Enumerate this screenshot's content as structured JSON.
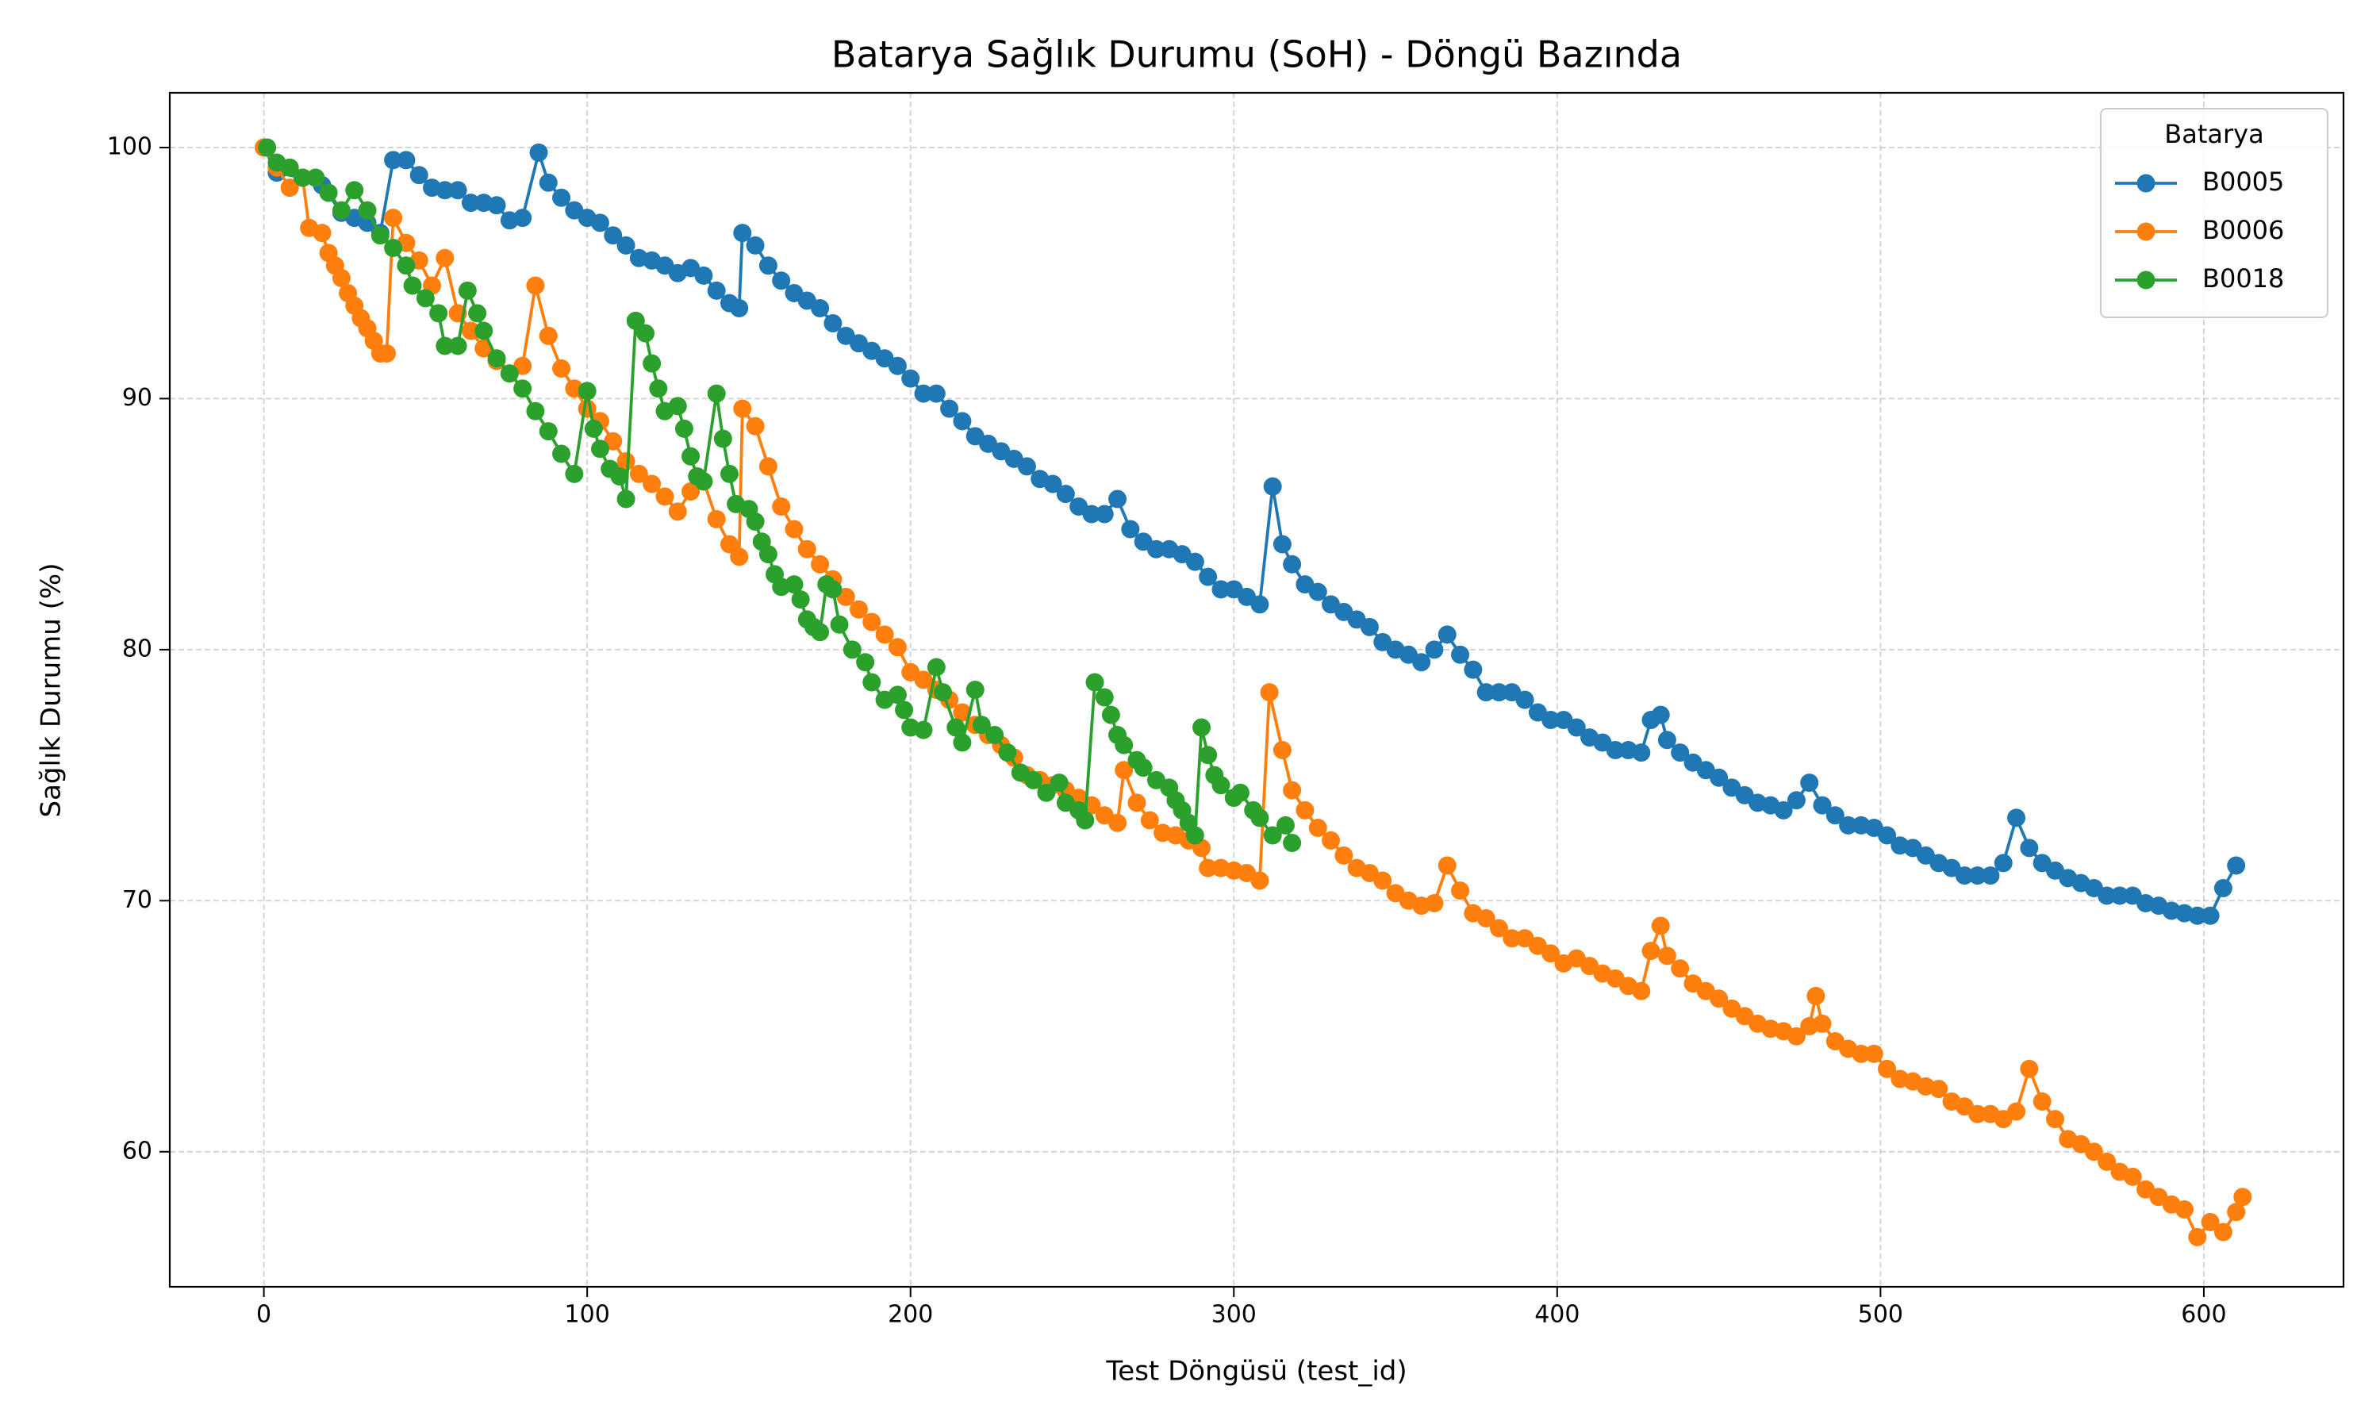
{
  "chart_data": {
    "type": "line",
    "title": "Batarya Sağlık Durumu (SoH) - Döngü Bazında",
    "x_label": "Test Döngüsü (test_id)",
    "y_label": "Sağlık Durumu (%)",
    "legend_title": "Batarya",
    "legend_loc": "upper right",
    "grid": true,
    "xlim": [
      -29.1,
      643.2
    ],
    "ylim": [
      54.62,
      102.18
    ],
    "xticks": [
      0,
      100,
      200,
      300,
      400,
      500,
      600
    ],
    "yticks": [
      60,
      70,
      80,
      90,
      100
    ],
    "series": [
      {
        "name": "B0005",
        "color": "#1f77b4",
        "x": [
          0,
          4,
          12,
          18,
          24,
          28,
          32,
          36,
          40,
          44,
          48,
          52,
          56,
          60,
          64,
          68,
          72,
          76,
          80,
          85,
          88,
          92,
          96,
          100,
          104,
          108,
          112,
          116,
          120,
          124,
          128,
          132,
          136,
          140,
          144,
          147,
          148,
          152,
          156,
          160,
          164,
          168,
          172,
          176,
          180,
          184,
          188,
          192,
          196,
          200,
          204,
          208,
          212,
          216,
          220,
          224,
          228,
          232,
          236,
          240,
          244,
          248,
          252,
          256,
          260,
          264,
          268,
          272,
          276,
          280,
          284,
          288,
          292,
          296,
          300,
          304,
          308,
          312,
          315,
          318,
          322,
          326,
          330,
          334,
          338,
          342,
          346,
          350,
          354,
          358,
          362,
          366,
          370,
          374,
          378,
          382,
          386,
          390,
          394,
          398,
          402,
          406,
          410,
          414,
          418,
          422,
          426,
          429,
          432,
          434,
          438,
          442,
          446,
          450,
          454,
          458,
          462,
          466,
          470,
          474,
          478,
          482,
          486,
          490,
          494,
          498,
          502,
          506,
          510,
          514,
          518,
          522,
          526,
          530,
          534,
          538,
          542,
          546,
          550,
          554,
          558,
          562,
          566,
          570,
          574,
          578,
          582,
          586,
          590,
          594,
          598,
          602,
          606,
          610
        ],
        "values": [
          100,
          99,
          98.8,
          98.5,
          97.4,
          97.2,
          97.0,
          96.6,
          99.5,
          99.5,
          98.9,
          98.4,
          98.3,
          98.3,
          97.8,
          97.8,
          97.7,
          97.1,
          97.2,
          99.8,
          98.6,
          98.0,
          97.5,
          97.2,
          97.0,
          96.5,
          96.1,
          95.6,
          95.5,
          95.3,
          95.0,
          95.2,
          94.9,
          94.3,
          93.8,
          93.6,
          96.6,
          96.1,
          95.3,
          94.7,
          94.2,
          93.9,
          93.6,
          93.0,
          92.5,
          92.2,
          91.9,
          91.6,
          91.3,
          90.8,
          90.2,
          90.2,
          89.6,
          89.1,
          88.5,
          88.2,
          87.9,
          87.6,
          87.3,
          86.8,
          86.6,
          86.2,
          85.7,
          85.4,
          85.4,
          86.0,
          84.8,
          84.3,
          84.0,
          84.0,
          83.8,
          83.5,
          82.9,
          82.4,
          82.4,
          82.1,
          81.8,
          86.5,
          84.2,
          83.4,
          82.6,
          82.3,
          81.8,
          81.5,
          81.2,
          80.9,
          80.3,
          80.0,
          79.8,
          79.5,
          80.0,
          80.6,
          79.8,
          79.2,
          78.3,
          78.3,
          78.3,
          78.0,
          77.5,
          77.2,
          77.2,
          76.9,
          76.5,
          76.3,
          76.0,
          76.0,
          75.9,
          77.2,
          77.4,
          76.4,
          75.9,
          75.5,
          75.2,
          74.9,
          74.5,
          74.2,
          73.9,
          73.8,
          73.6,
          74.0,
          74.7,
          73.8,
          73.4,
          73.0,
          73.0,
          72.9,
          72.6,
          72.2,
          72.1,
          71.8,
          71.5,
          71.3,
          71.0,
          71.0,
          71.0,
          71.5,
          73.3,
          72.1,
          71.5,
          71.2,
          70.9,
          70.7,
          70.5,
          70.2,
          70.2,
          70.2,
          69.9,
          69.8,
          69.6,
          69.5,
          69.4,
          69.4,
          70.5,
          71.4
        ]
      },
      {
        "name": "B0006",
        "color": "#ff7f0e",
        "x": [
          0,
          4,
          8,
          12,
          14,
          18,
          20,
          22,
          24,
          26,
          28,
          30,
          32,
          34,
          36,
          38,
          40,
          44,
          48,
          52,
          56,
          60,
          64,
          68,
          72,
          76,
          80,
          84,
          88,
          92,
          96,
          100,
          104,
          108,
          112,
          116,
          120,
          124,
          128,
          132,
          136,
          140,
          144,
          147,
          148,
          152,
          156,
          160,
          164,
          168,
          172,
          176,
          180,
          184,
          188,
          192,
          196,
          200,
          204,
          208,
          212,
          216,
          220,
          224,
          228,
          232,
          236,
          240,
          244,
          248,
          252,
          256,
          260,
          264,
          266,
          270,
          274,
          278,
          282,
          286,
          290,
          292,
          296,
          300,
          304,
          308,
          311,
          315,
          318,
          322,
          326,
          330,
          334,
          338,
          342,
          346,
          350,
          354,
          358,
          362,
          366,
          370,
          374,
          378,
          382,
          386,
          390,
          394,
          398,
          402,
          406,
          410,
          414,
          418,
          422,
          426,
          429,
          432,
          434,
          438,
          442,
          446,
          450,
          454,
          458,
          462,
          466,
          470,
          474,
          478,
          480,
          482,
          486,
          490,
          494,
          498,
          502,
          506,
          510,
          514,
          518,
          522,
          526,
          530,
          534,
          538,
          542,
          546,
          550,
          554,
          558,
          562,
          566,
          570,
          574,
          578,
          582,
          586,
          590,
          594,
          598,
          602,
          606,
          610,
          612
        ],
        "values": [
          100,
          99.2,
          98.4,
          98.8,
          96.8,
          96.6,
          95.8,
          95.3,
          94.8,
          94.2,
          93.7,
          93.2,
          92.8,
          92.3,
          91.8,
          91.8,
          97.2,
          96.2,
          95.5,
          94.5,
          95.6,
          93.4,
          92.7,
          92.0,
          91.5,
          91.0,
          91.3,
          94.5,
          92.5,
          91.2,
          90.4,
          89.6,
          89.1,
          88.3,
          87.5,
          87.0,
          86.6,
          86.1,
          85.5,
          86.3,
          86.7,
          85.2,
          84.2,
          83.7,
          89.6,
          88.9,
          87.3,
          85.7,
          84.8,
          84.0,
          83.4,
          82.8,
          82.1,
          81.6,
          81.1,
          80.6,
          80.1,
          79.1,
          78.8,
          78.4,
          78.0,
          77.5,
          77.0,
          76.6,
          76.2,
          75.7,
          75.0,
          74.8,
          74.6,
          74.4,
          74.1,
          73.8,
          73.4,
          73.1,
          75.2,
          73.9,
          73.2,
          72.7,
          72.6,
          72.4,
          72.1,
          71.3,
          71.3,
          71.2,
          71.1,
          70.8,
          78.3,
          76.0,
          74.4,
          73.6,
          72.9,
          72.4,
          71.8,
          71.3,
          71.1,
          70.8,
          70.3,
          70.0,
          69.8,
          69.9,
          71.4,
          70.4,
          69.5,
          69.3,
          68.9,
          68.5,
          68.5,
          68.2,
          67.9,
          67.5,
          67.7,
          67.4,
          67.1,
          66.9,
          66.6,
          66.4,
          68.0,
          69.0,
          67.8,
          67.3,
          66.7,
          66.4,
          66.1,
          65.7,
          65.4,
          65.1,
          64.9,
          64.8,
          64.6,
          65.0,
          66.2,
          65.1,
          64.4,
          64.1,
          63.9,
          63.9,
          63.3,
          62.9,
          62.8,
          62.6,
          62.5,
          62.0,
          61.8,
          61.5,
          61.5,
          61.3,
          61.6,
          63.3,
          62.0,
          61.3,
          60.5,
          60.3,
          60.0,
          59.6,
          59.2,
          59.0,
          58.5,
          58.2,
          57.9,
          57.7,
          56.6,
          57.2,
          56.8,
          57.6,
          58.2
        ]
      },
      {
        "name": "B0018",
        "color": "#2ca02c",
        "x": [
          1,
          4,
          8,
          12,
          16,
          20,
          24,
          28,
          32,
          36,
          40,
          44,
          46,
          50,
          54,
          56,
          60,
          63,
          66,
          68,
          72,
          76,
          80,
          84,
          88,
          92,
          96,
          100,
          102,
          104,
          107,
          110,
          112,
          115,
          118,
          120,
          122,
          124,
          128,
          130,
          132,
          134,
          136,
          140,
          142,
          144,
          146,
          150,
          152,
          154,
          156,
          158,
          160,
          164,
          166,
          168,
          170,
          172,
          174,
          176,
          178,
          182,
          186,
          188,
          192,
          196,
          198,
          200,
          204,
          208,
          210,
          214,
          216,
          220,
          222,
          226,
          230,
          234,
          238,
          242,
          246,
          248,
          252,
          254,
          257,
          260,
          262,
          264,
          266,
          270,
          272,
          276,
          280,
          282,
          284,
          286,
          288,
          290,
          292,
          294,
          296,
          300,
          302,
          306,
          308,
          312,
          316,
          318
        ],
        "values": [
          100,
          99.4,
          99.2,
          98.8,
          98.8,
          98.2,
          97.5,
          98.3,
          97.5,
          96.5,
          96.0,
          95.3,
          94.5,
          94.0,
          93.4,
          92.1,
          92.1,
          94.3,
          93.4,
          92.7,
          91.6,
          91.0,
          90.4,
          89.5,
          88.7,
          87.8,
          87.0,
          90.3,
          88.8,
          88.0,
          87.2,
          86.9,
          86.0,
          93.1,
          92.6,
          91.4,
          90.4,
          89.5,
          89.7,
          88.8,
          87.7,
          86.9,
          86.7,
          90.2,
          88.4,
          87.0,
          85.8,
          85.6,
          85.1,
          84.3,
          83.8,
          83.0,
          82.5,
          82.6,
          82.0,
          81.2,
          80.9,
          80.7,
          82.6,
          82.4,
          81.0,
          80.0,
          79.5,
          78.7,
          78.0,
          78.2,
          77.6,
          76.9,
          76.8,
          79.3,
          78.3,
          76.9,
          76.3,
          78.4,
          77.0,
          76.6,
          75.9,
          75.1,
          74.8,
          74.3,
          74.7,
          73.9,
          73.6,
          73.2,
          78.7,
          78.1,
          77.4,
          76.6,
          76.2,
          75.6,
          75.3,
          74.8,
          74.5,
          74.0,
          73.6,
          73.1,
          72.6,
          76.9,
          75.8,
          75.0,
          74.6,
          74.1,
          74.3,
          73.6,
          73.3,
          72.6,
          73.0,
          72.3
        ]
      }
    ]
  }
}
